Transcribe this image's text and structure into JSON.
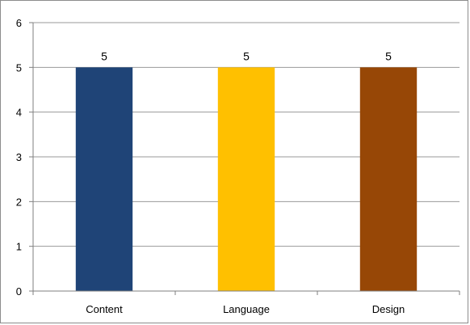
{
  "chart_data": {
    "type": "bar",
    "title": "",
    "xlabel": "",
    "ylabel": "",
    "categories": [
      "Content",
      "Language",
      "Design"
    ],
    "values": [
      5,
      5,
      5
    ],
    "data_labels": [
      "5",
      "5",
      "5"
    ],
    "bar_colors": [
      "#1f4477",
      "#ffc000",
      "#974706"
    ],
    "ylim": [
      0,
      6
    ],
    "yticks": [
      0,
      1,
      2,
      3,
      4,
      5,
      6
    ],
    "ytick_labels": [
      "0",
      "1",
      "2",
      "3",
      "4",
      "5",
      "6"
    ],
    "grid": true,
    "legend": "none"
  },
  "colors": {
    "gridline": "#9a9a9a",
    "axis": "#7f7f7f",
    "frame": "#8c8c8c"
  }
}
